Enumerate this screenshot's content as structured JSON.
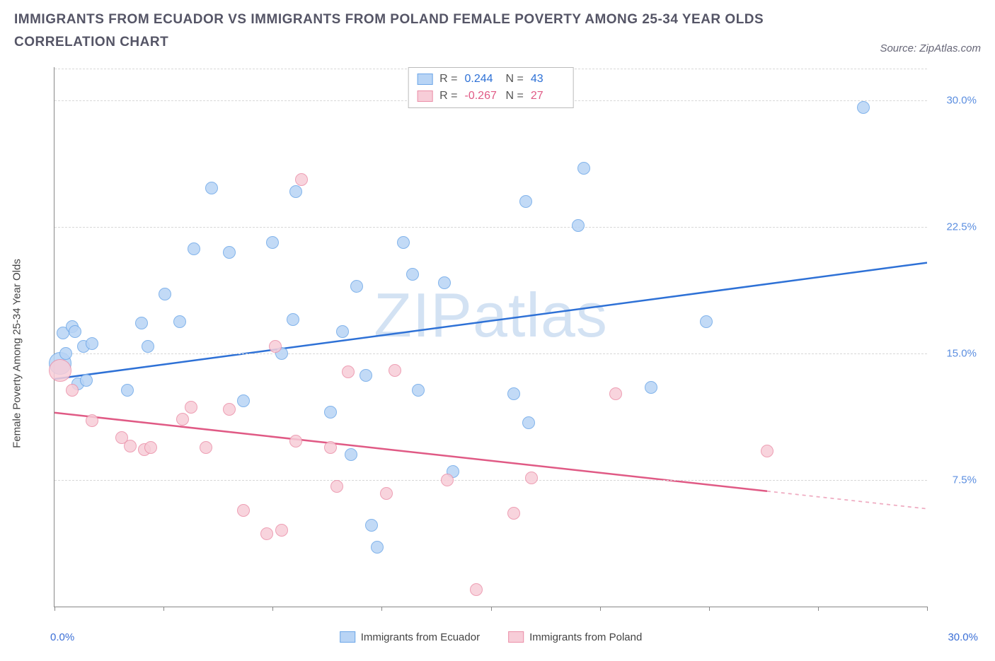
{
  "title": "IMMIGRANTS FROM ECUADOR VS IMMIGRANTS FROM POLAND FEMALE POVERTY AMONG 25-34 YEAR OLDS CORRELATION CHART",
  "source": "Source: ZipAtlas.com",
  "watermark_main": "ZIP",
  "watermark_sub": "atlas",
  "chart": {
    "type": "scatter",
    "x_min": 0.0,
    "x_max": 30.0,
    "y_min": 0.0,
    "y_max": 32.0,
    "x_ticks_pct": [
      0,
      12.5,
      25,
      37.5,
      50,
      62.5,
      75,
      87.5,
      100
    ],
    "x_label_min": "0.0%",
    "x_label_max": "30.0%",
    "x_label_color": "#3b6fd6",
    "y_ticks": [
      {
        "v": 7.5,
        "label": "7.5%"
      },
      {
        "v": 15.0,
        "label": "15.0%"
      },
      {
        "v": 22.5,
        "label": "22.5%"
      },
      {
        "v": 30.0,
        "label": "30.0%"
      }
    ],
    "y_tick_color": "#5b8ee0",
    "y_axis_title": "Female Poverty Among 25-34 Year Olds",
    "grid_color": "#d8d8d8",
    "background_color": "#ffffff",
    "marker_radius": 9,
    "big_marker_radius": 16,
    "line_width": 2.5
  },
  "series": [
    {
      "name": "Immigrants from Ecuador",
      "color_fill": "#b8d4f5",
      "color_stroke": "#6da7e8",
      "line_color": "#2e71d6",
      "r_label": "R =",
      "r_value": "0.244",
      "n_label": "N =",
      "n_value": "43",
      "value_color": "#2e71d6",
      "trend": {
        "x1": 0.0,
        "y1": 13.5,
        "x2": 30.0,
        "y2": 20.4,
        "solid_to_x": 30.0
      },
      "points": [
        [
          0.3,
          16.2
        ],
        [
          0.4,
          15.0
        ],
        [
          0.6,
          16.6
        ],
        [
          0.7,
          16.3
        ],
        [
          0.8,
          13.2
        ],
        [
          1.0,
          15.4
        ],
        [
          1.1,
          13.4
        ],
        [
          1.3,
          15.6
        ],
        [
          2.5,
          12.8
        ],
        [
          3.0,
          16.8
        ],
        [
          3.2,
          15.4
        ],
        [
          3.8,
          18.5
        ],
        [
          4.3,
          16.9
        ],
        [
          4.8,
          21.2
        ],
        [
          5.4,
          24.8
        ],
        [
          6.0,
          21.0
        ],
        [
          6.5,
          12.2
        ],
        [
          7.5,
          21.6
        ],
        [
          7.8,
          15.0
        ],
        [
          8.2,
          17.0
        ],
        [
          8.3,
          24.6
        ],
        [
          9.5,
          11.5
        ],
        [
          9.9,
          16.3
        ],
        [
          10.2,
          9.0
        ],
        [
          10.4,
          19.0
        ],
        [
          10.7,
          13.7
        ],
        [
          10.9,
          4.8
        ],
        [
          11.1,
          3.5
        ],
        [
          12.0,
          21.6
        ],
        [
          12.3,
          19.7
        ],
        [
          12.5,
          12.8
        ],
        [
          13.4,
          19.2
        ],
        [
          13.7,
          8.0
        ],
        [
          15.8,
          12.6
        ],
        [
          16.2,
          24.0
        ],
        [
          16.3,
          10.9
        ],
        [
          18.0,
          22.6
        ],
        [
          18.2,
          26.0
        ],
        [
          20.5,
          13.0
        ],
        [
          22.4,
          16.9
        ],
        [
          27.8,
          29.6
        ]
      ],
      "big_point": [
        0.2,
        14.4
      ]
    },
    {
      "name": "Immigrants from Poland",
      "color_fill": "#f7cdd8",
      "color_stroke": "#eb8fa8",
      "line_color": "#e05a85",
      "r_label": "R =",
      "r_value": "-0.267",
      "n_label": "N =",
      "n_value": "27",
      "value_color": "#e05a85",
      "trend": {
        "x1": 0.0,
        "y1": 11.5,
        "x2": 30.0,
        "y2": 5.8,
        "solid_to_x": 24.5
      },
      "points": [
        [
          0.6,
          12.8
        ],
        [
          1.3,
          11.0
        ],
        [
          2.3,
          10.0
        ],
        [
          2.6,
          9.5
        ],
        [
          3.1,
          9.3
        ],
        [
          3.3,
          9.4
        ],
        [
          4.4,
          11.1
        ],
        [
          4.7,
          11.8
        ],
        [
          5.2,
          9.4
        ],
        [
          6.0,
          11.7
        ],
        [
          6.5,
          5.7
        ],
        [
          7.3,
          4.3
        ],
        [
          7.6,
          15.4
        ],
        [
          7.8,
          4.5
        ],
        [
          8.3,
          9.8
        ],
        [
          8.5,
          25.3
        ],
        [
          9.5,
          9.4
        ],
        [
          9.7,
          7.1
        ],
        [
          10.1,
          13.9
        ],
        [
          11.4,
          6.7
        ],
        [
          11.7,
          14.0
        ],
        [
          13.5,
          7.5
        ],
        [
          14.5,
          1.0
        ],
        [
          15.8,
          5.5
        ],
        [
          16.4,
          7.6
        ],
        [
          19.3,
          12.6
        ],
        [
          24.5,
          9.2
        ]
      ],
      "big_point": [
        0.2,
        14.0
      ]
    }
  ],
  "legend_bottom": [
    {
      "label": "Immigrants from Ecuador",
      "fill": "#b8d4f5",
      "stroke": "#6da7e8"
    },
    {
      "label": "Immigrants from Poland",
      "fill": "#f7cdd8",
      "stroke": "#eb8fa8"
    }
  ]
}
